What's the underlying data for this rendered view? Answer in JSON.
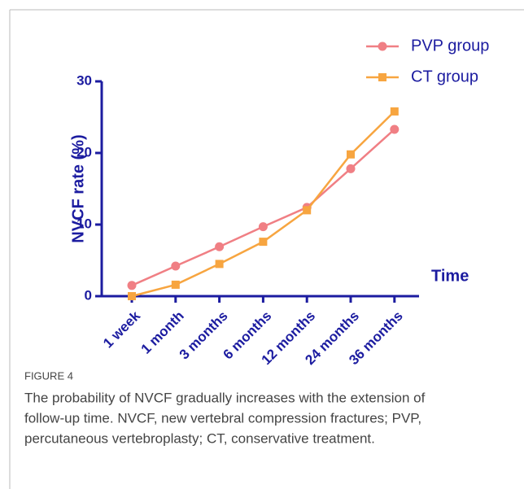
{
  "chart_data": {
    "type": "line",
    "categories": [
      "1 week",
      "1 month",
      "3 months",
      "6 months",
      "12 months",
      "24 months",
      "36 months"
    ],
    "series": [
      {
        "name": "PVP group",
        "color": "#f07f84",
        "marker": "circle",
        "values": [
          1.5,
          4.2,
          6.9,
          9.7,
          12.4,
          17.8,
          23.3
        ]
      },
      {
        "name": "CT group",
        "color": "#f7a540",
        "marker": "square",
        "values": [
          0,
          1.6,
          4.5,
          7.6,
          12.0,
          19.8,
          25.8
        ]
      }
    ],
    "y_label": "NVCF rate (%)",
    "x_label": "Time",
    "ylim": [
      0,
      30
    ],
    "yticks": [
      0,
      10,
      20,
      30
    ],
    "legend": "upper right",
    "axis_color": "#1c1ca0",
    "caption": {
      "label": "FIGURE 4",
      "lines": [
        "The probability of NVCF gradually increases with the extension of",
        "follow-up time. NVCF, new vertebral compression fractures; PVP,",
        "percutaneous vertebroplasty; CT, conservative treatment."
      ]
    }
  }
}
